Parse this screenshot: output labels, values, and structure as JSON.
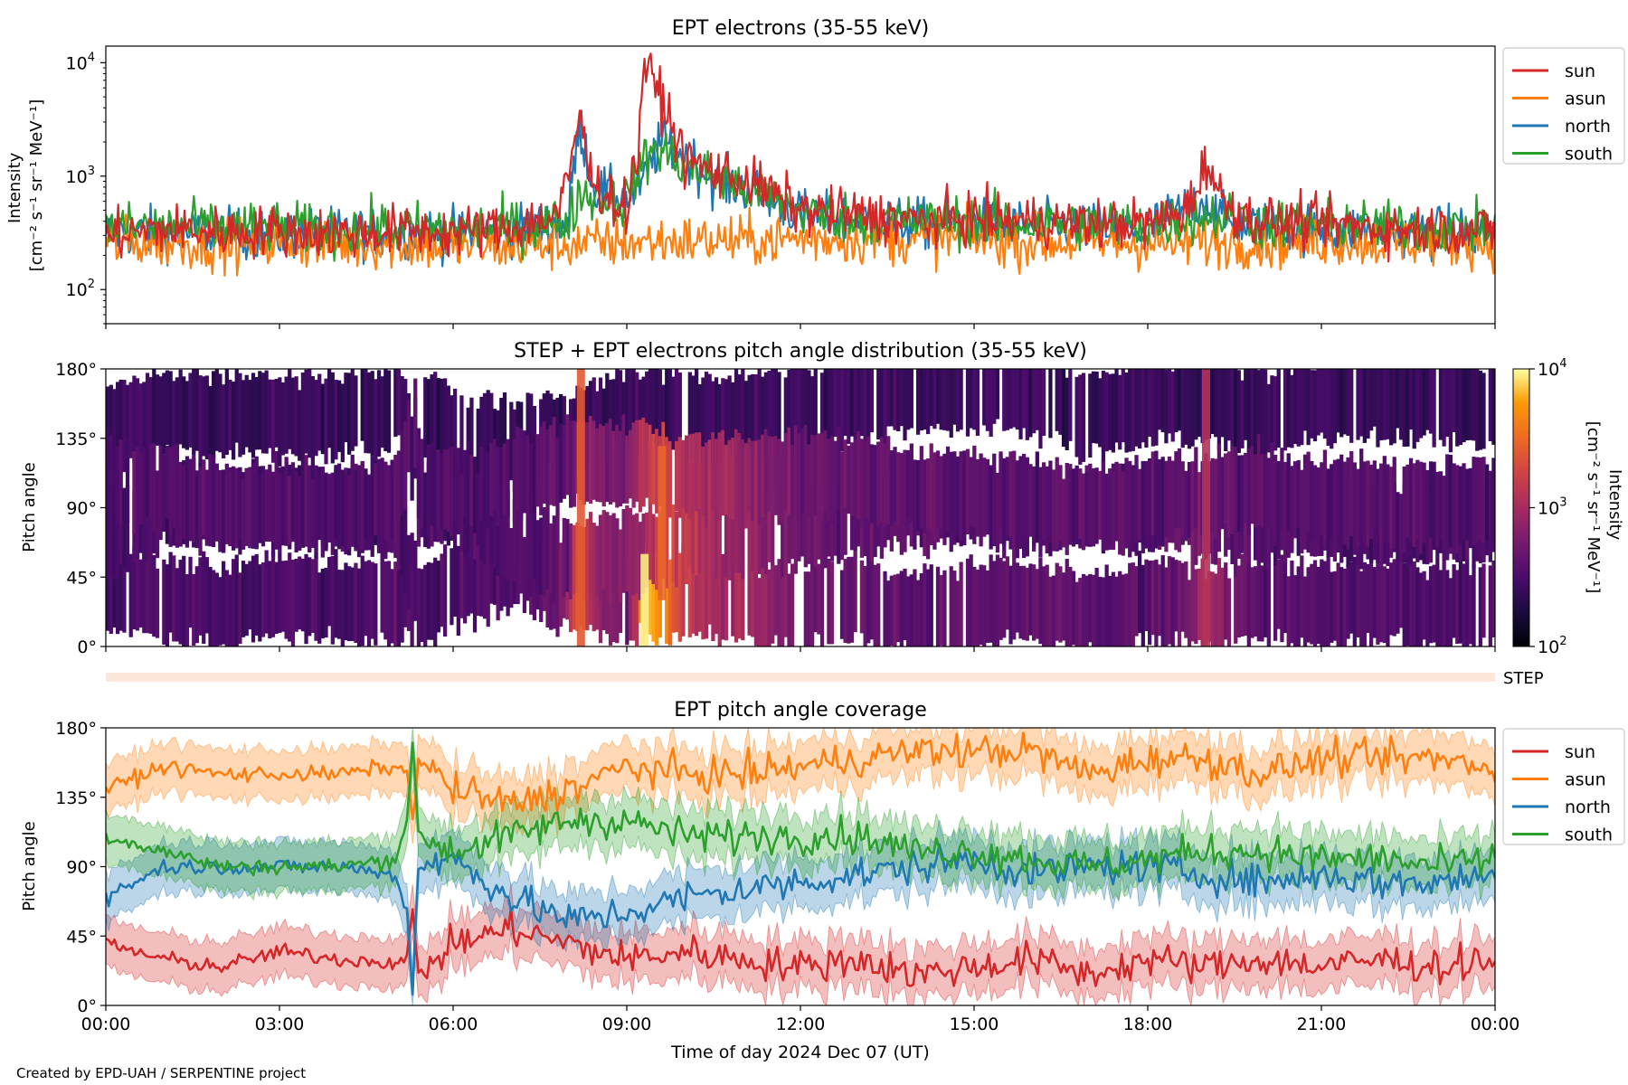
{
  "credit": "Created by EPD-UAH / SERPENTINE project",
  "colors": {
    "sun": "#d62728",
    "asun": "#ff7f0e",
    "north": "#1f77b4",
    "south": "#2ca02c"
  },
  "chart_data": [
    {
      "type": "line",
      "title": "EPT electrons (35-55 keV)",
      "ylabel_line1": "Intensity",
      "ylabel_line2": "[cm⁻² s⁻¹ sr⁻¹ MeV⁻¹]",
      "y_scale": "log",
      "ylim": [
        50,
        14000
      ],
      "y_ticks": [
        {
          "value": 100,
          "base": "10",
          "exp": "2"
        },
        {
          "value": 1000,
          "base": "10",
          "exp": "3"
        },
        {
          "value": 10000,
          "base": "10",
          "exp": "4"
        }
      ],
      "xlim": [
        0,
        24
      ],
      "x_unit": "hours",
      "legend_position": "outside-right-top",
      "series": [
        {
          "name": "sun",
          "points": [
            [
              0,
              300
            ],
            [
              1,
              340
            ],
            [
              2,
              320
            ],
            [
              3,
              330
            ],
            [
              4,
              310
            ],
            [
              5,
              330
            ],
            [
              6,
              320
            ],
            [
              7,
              350
            ],
            [
              7.8,
              450
            ],
            [
              8,
              900
            ],
            [
              8.2,
              3500
            ],
            [
              8.3,
              1200
            ],
            [
              8.6,
              700
            ],
            [
              9,
              500
            ],
            [
              9.2,
              1500
            ],
            [
              9.3,
              9500
            ],
            [
              9.5,
              6000
            ],
            [
              9.8,
              2500
            ],
            [
              10,
              1400
            ],
            [
              10.5,
              1100
            ],
            [
              11,
              950
            ],
            [
              11.5,
              700
            ],
            [
              12,
              500
            ],
            [
              13,
              450
            ],
            [
              14,
              400
            ],
            [
              15,
              420
            ],
            [
              16,
              400
            ],
            [
              17,
              380
            ],
            [
              18,
              380
            ],
            [
              18.5,
              450
            ],
            [
              18.8,
              600
            ],
            [
              19,
              1400
            ],
            [
              19.2,
              700
            ],
            [
              19.6,
              450
            ],
            [
              20,
              400
            ],
            [
              21,
              380
            ],
            [
              22,
              350
            ],
            [
              23,
              340
            ],
            [
              24,
              330
            ]
          ]
        },
        {
          "name": "asun",
          "points": [
            [
              0,
              260
            ],
            [
              1,
              260
            ],
            [
              2,
              250
            ],
            [
              3,
              260
            ],
            [
              4,
              250
            ],
            [
              5,
              250
            ],
            [
              6,
              240
            ],
            [
              7,
              240
            ],
            [
              8,
              250
            ],
            [
              9,
              260
            ],
            [
              10,
              270
            ],
            [
              11,
              270
            ],
            [
              12,
              280
            ],
            [
              13,
              280
            ],
            [
              14,
              280
            ],
            [
              15,
              280
            ],
            [
              16,
              260
            ],
            [
              17,
              260
            ],
            [
              18,
              250
            ],
            [
              19,
              260
            ],
            [
              20,
              260
            ],
            [
              21,
              270
            ],
            [
              22,
              260
            ],
            [
              23,
              270
            ],
            [
              24,
              260
            ]
          ]
        },
        {
          "name": "north",
          "points": [
            [
              0,
              320
            ],
            [
              1,
              320
            ],
            [
              2,
              310
            ],
            [
              3,
              310
            ],
            [
              4,
              320
            ],
            [
              5,
              320
            ],
            [
              6,
              310
            ],
            [
              7,
              330
            ],
            [
              8,
              380
            ],
            [
              8.2,
              2500
            ],
            [
              8.4,
              800
            ],
            [
              9,
              600
            ],
            [
              9.3,
              900
            ],
            [
              9.6,
              2000
            ],
            [
              10,
              1500
            ],
            [
              10.5,
              900
            ],
            [
              11,
              800
            ],
            [
              12,
              450
            ],
            [
              13,
              400
            ],
            [
              14,
              380
            ],
            [
              15,
              380
            ],
            [
              16,
              360
            ],
            [
              17,
              360
            ],
            [
              18,
              340
            ],
            [
              19,
              600
            ],
            [
              19.3,
              400
            ],
            [
              20,
              360
            ],
            [
              21,
              340
            ],
            [
              22,
              330
            ],
            [
              23,
              320
            ],
            [
              24,
              320
            ]
          ]
        },
        {
          "name": "south",
          "points": [
            [
              0,
              350
            ],
            [
              1,
              360
            ],
            [
              2,
              350
            ],
            [
              3,
              350
            ],
            [
              4,
              340
            ],
            [
              5,
              350
            ],
            [
              6,
              340
            ],
            [
              7,
              360
            ],
            [
              8,
              400
            ],
            [
              8.2,
              700
            ],
            [
              9,
              600
            ],
            [
              9.5,
              1800
            ],
            [
              10,
              1200
            ],
            [
              11,
              800
            ],
            [
              12,
              480
            ],
            [
              13,
              420
            ],
            [
              14,
              400
            ],
            [
              15,
              400
            ],
            [
              16,
              380
            ],
            [
              17,
              380
            ],
            [
              18,
              360
            ],
            [
              19,
              450
            ],
            [
              20,
              380
            ],
            [
              21,
              370
            ],
            [
              22,
              360
            ],
            [
              23,
              350
            ],
            [
              24,
              350
            ]
          ]
        }
      ]
    },
    {
      "type": "heatmap",
      "title": "STEP + EPT electrons pitch angle distribution (35-55 keV)",
      "ylabel": "Pitch angle",
      "y_unit": "°",
      "ylim": [
        0,
        180
      ],
      "y_ticks": [
        0,
        45,
        90,
        135,
        180
      ],
      "colorbar": {
        "label_line1": "Intensity",
        "label_line2": "[cm⁻² s⁻¹ sr⁻¹ MeV⁻¹]",
        "scale": "log",
        "range": [
          100,
          10000
        ],
        "colormap": "inferno",
        "ticks": [
          {
            "value": 100,
            "base": "10",
            "exp": "2"
          },
          {
            "value": 1000,
            "base": "10",
            "exp": "3"
          },
          {
            "value": 10000,
            "base": "10",
            "exp": "4"
          }
        ]
      },
      "events": [
        {
          "hour": 8.2,
          "pa_range": [
            0,
            180
          ],
          "value": 2500
        },
        {
          "hour": 9.3,
          "pa_range": [
            0,
            60
          ],
          "value": 9000
        },
        {
          "hour": 9.6,
          "pa_range": [
            30,
            130
          ],
          "value": 3000
        },
        {
          "hour": 19.0,
          "pa_range": [
            0,
            180
          ],
          "value": 1200
        }
      ]
    },
    {
      "type": "line",
      "title": "EPT pitch angle coverage",
      "ylabel": "Pitch angle",
      "xlabel": "Time of day 2024 Dec 07 (UT)",
      "y_unit": "°",
      "ylim": [
        0,
        180
      ],
      "y_ticks": [
        0,
        45,
        90,
        135,
        180
      ],
      "xlim": [
        0,
        24
      ],
      "x_unit": "hours",
      "x_ticks": [
        "00:00",
        "03:00",
        "06:00",
        "09:00",
        "12:00",
        "15:00",
        "18:00",
        "21:00",
        "00:00"
      ],
      "step_label": "STEP",
      "legend_position": "outside-right-top",
      "series": [
        {
          "name": "sun",
          "points": [
            [
              0,
              40
            ],
            [
              1,
              30
            ],
            [
              2,
              25
            ],
            [
              3,
              35
            ],
            [
              4,
              30
            ],
            [
              5,
              28
            ],
            [
              5.2,
              30
            ],
            [
              5.3,
              60
            ],
            [
              5.4,
              20
            ],
            [
              6,
              40
            ],
            [
              7,
              50
            ],
            [
              8,
              40
            ],
            [
              9,
              30
            ],
            [
              10,
              35
            ],
            [
              11,
              30
            ],
            [
              12,
              25
            ],
            [
              13,
              30
            ],
            [
              14,
              20
            ],
            [
              15,
              25
            ],
            [
              16,
              30
            ],
            [
              17,
              20
            ],
            [
              18,
              30
            ],
            [
              19,
              25
            ],
            [
              20,
              30
            ],
            [
              21,
              25
            ],
            [
              22,
              30
            ],
            [
              23,
              25
            ],
            [
              24,
              30
            ]
          ]
        },
        {
          "name": "asun",
          "points": [
            [
              0,
              140
            ],
            [
              1,
              155
            ],
            [
              2,
              150
            ],
            [
              3,
              150
            ],
            [
              4,
              150
            ],
            [
              5,
              155
            ],
            [
              5.2,
              150
            ],
            [
              5.3,
              120
            ],
            [
              5.4,
              160
            ],
            [
              6,
              140
            ],
            [
              7,
              130
            ],
            [
              8,
              140
            ],
            [
              9,
              155
            ],
            [
              10,
              150
            ],
            [
              11,
              150
            ],
            [
              12,
              155
            ],
            [
              13,
              160
            ],
            [
              14,
              165
            ],
            [
              15,
              165
            ],
            [
              16,
              165
            ],
            [
              17,
              150
            ],
            [
              18,
              160
            ],
            [
              19,
              160
            ],
            [
              20,
              150
            ],
            [
              21,
              160
            ],
            [
              22,
              160
            ],
            [
              23,
              160
            ],
            [
              24,
              155
            ]
          ]
        },
        {
          "name": "north",
          "points": [
            [
              0,
              70
            ],
            [
              1,
              90
            ],
            [
              2,
              90
            ],
            [
              3,
              90
            ],
            [
              4,
              90
            ],
            [
              5,
              85
            ],
            [
              5.2,
              60
            ],
            [
              5.3,
              10
            ],
            [
              5.4,
              90
            ],
            [
              6,
              95
            ],
            [
              7,
              70
            ],
            [
              8,
              55
            ],
            [
              9,
              60
            ],
            [
              10,
              70
            ],
            [
              11,
              75
            ],
            [
              12,
              80
            ],
            [
              13,
              85
            ],
            [
              14,
              90
            ],
            [
              15,
              95
            ],
            [
              16,
              85
            ],
            [
              17,
              90
            ],
            [
              18,
              90
            ],
            [
              19,
              85
            ],
            [
              20,
              80
            ],
            [
              21,
              85
            ],
            [
              22,
              80
            ],
            [
              23,
              80
            ],
            [
              24,
              85
            ]
          ]
        },
        {
          "name": "south",
          "points": [
            [
              0,
              110
            ],
            [
              1,
              100
            ],
            [
              2,
              90
            ],
            [
              3,
              90
            ],
            [
              4,
              90
            ],
            [
              5,
              95
            ],
            [
              5.2,
              120
            ],
            [
              5.3,
              170
            ],
            [
              5.4,
              110
            ],
            [
              6,
              100
            ],
            [
              7,
              110
            ],
            [
              8,
              120
            ],
            [
              9,
              120
            ],
            [
              10,
              110
            ],
            [
              11,
              110
            ],
            [
              12,
              110
            ],
            [
              13,
              110
            ],
            [
              14,
              100
            ],
            [
              15,
              100
            ],
            [
              16,
              95
            ],
            [
              17,
              90
            ],
            [
              18,
              95
            ],
            [
              19,
              100
            ],
            [
              20,
              100
            ],
            [
              21,
              95
            ],
            [
              22,
              95
            ],
            [
              23,
              90
            ],
            [
              24,
              95
            ]
          ]
        }
      ]
    }
  ]
}
